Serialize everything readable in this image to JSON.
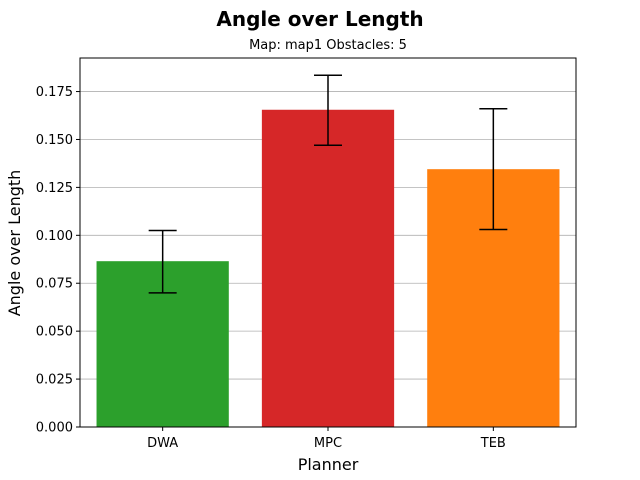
{
  "chart_data": {
    "type": "bar",
    "title": "Angle over Length",
    "subtitle": "Map: map1 Obstacles: 5",
    "xlabel": "Planner",
    "ylabel": "Angle over Length",
    "categories": [
      "DWA",
      "MPC",
      "TEB"
    ],
    "values": [
      0.0865,
      0.1655,
      0.1345
    ],
    "error_low": [
      0.07,
      0.147,
      0.103
    ],
    "error_high": [
      0.1025,
      0.1835,
      0.166
    ],
    "colors": [
      "#2ca02c",
      "#d62728",
      "#ff7f0e"
    ],
    "ylim": [
      0,
      0.1925
    ],
    "yticks": [
      "0.000",
      "0.025",
      "0.050",
      "0.075",
      "0.100",
      "0.125",
      "0.150",
      "0.175"
    ],
    "grid": "y"
  }
}
